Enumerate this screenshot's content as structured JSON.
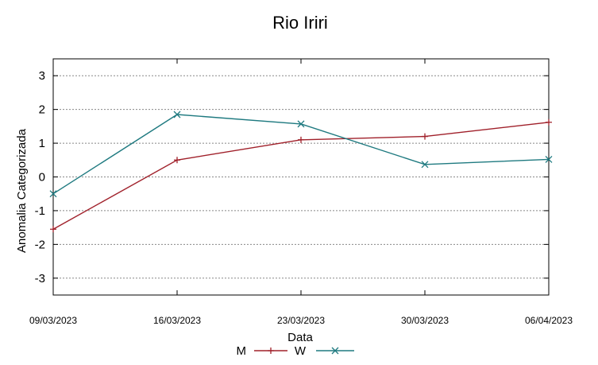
{
  "chart_data": {
    "type": "line",
    "title": "Rio Iriri",
    "xlabel": "Data",
    "ylabel": "Anomalia Categorizada",
    "categories": [
      "09/03/2023",
      "16/03/2023",
      "23/03/2023",
      "30/03/2023",
      "06/04/2023"
    ],
    "ylim": [
      -3.5,
      3.5
    ],
    "yticks": [
      -3,
      -2,
      -1,
      0,
      1,
      2,
      3
    ],
    "grid": true,
    "legend_position": "bottom",
    "series": [
      {
        "name": "M",
        "color": "#a0202a",
        "marker": "plus",
        "values": [
          -1.55,
          0.5,
          1.1,
          1.2,
          1.62
        ]
      },
      {
        "name": "W",
        "color": "#1f7a80",
        "marker": "cross",
        "values": [
          -0.5,
          1.85,
          1.57,
          0.37,
          0.52
        ]
      }
    ]
  }
}
